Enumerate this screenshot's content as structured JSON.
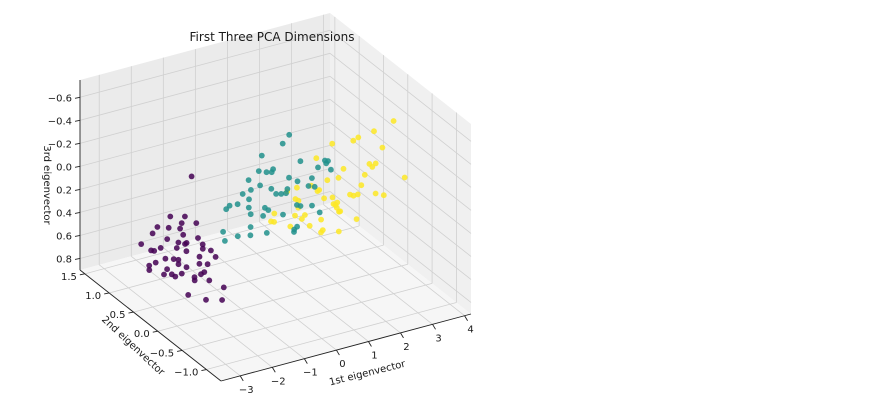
{
  "chart_data": {
    "type": "scatter",
    "title": "First Three PCA Dimensions",
    "xlabel": "1st eigenvector",
    "ylabel": "2nd eigenvector",
    "zlabel": "3rd eigenvector",
    "x_ticks": [
      "−3",
      "−2",
      "−1",
      "0",
      "1",
      "2",
      "3",
      "4"
    ],
    "y_ticks": [
      "−1.0",
      "−0.5",
      "0.0",
      "0.5",
      "1.0",
      "1.5"
    ],
    "z_ticks": [
      "−0.6",
      "−0.4",
      "−0.2",
      "0.0",
      "0.2",
      "0.4",
      "0.6",
      "0.8"
    ],
    "xlim": [
      -3.6,
      4.2
    ],
    "ylim": [
      -1.3,
      1.6
    ],
    "zlim": [
      -0.75,
      0.9
    ],
    "z_inverted": true,
    "grid": true,
    "series": [
      {
        "color": "#440154",
        "points": [
          [
            -2.8,
            -0.3,
            0.05
          ],
          [
            -2.6,
            0.1,
            0.25
          ],
          [
            -2.7,
            0.4,
            0.3
          ],
          [
            -2.5,
            -0.2,
            0.2
          ],
          [
            -2.4,
            0.3,
            0.15
          ],
          [
            -2.6,
            0.6,
            0.45
          ],
          [
            -2.3,
            0.0,
            0.35
          ],
          [
            -2.2,
            0.5,
            0.4
          ],
          [
            -2.7,
            -0.5,
            0.1
          ],
          [
            -2.5,
            0.8,
            0.55
          ],
          [
            -2.4,
            0.2,
            0.5
          ],
          [
            -2.3,
            -0.1,
            0.45
          ],
          [
            -2.2,
            0.4,
            0.3
          ],
          [
            -2.6,
            0.3,
            0.6
          ],
          [
            -2.5,
            -0.3,
            0.3
          ],
          [
            -2.1,
            0.1,
            0.55
          ],
          [
            -2.8,
            0.2,
            0.4
          ],
          [
            -2.4,
            0.6,
            0.65
          ],
          [
            -2.3,
            0.9,
            0.7
          ],
          [
            -2.6,
            -0.1,
            0.5
          ],
          [
            -2.2,
            -0.4,
            0.6
          ],
          [
            -2.5,
            0.5,
            0.25
          ],
          [
            -2.7,
            0.0,
            0.2
          ],
          [
            -2.1,
            0.7,
            0.75
          ],
          [
            -2.3,
            0.3,
            0.1
          ],
          [
            -2.9,
            0.6,
            0.45
          ],
          [
            -2.4,
            -0.2,
            0.65
          ],
          [
            -2.6,
            1.0,
            0.55
          ],
          [
            -2.0,
            0.2,
            0.5
          ],
          [
            -2.5,
            0.1,
            0.7
          ],
          [
            -3.0,
            -0.3,
            -0.5
          ],
          [
            -2.2,
            0.5,
            0.55
          ],
          [
            -2.4,
            0.4,
            0.4
          ],
          [
            -2.7,
            0.7,
            0.35
          ],
          [
            -2.3,
            -0.5,
            0.45
          ],
          [
            -2.6,
            0.2,
            0.15
          ],
          [
            -2.1,
            -0.2,
            0.3
          ],
          [
            -2.5,
            0.9,
            0.75
          ],
          [
            -2.8,
            0.4,
            0.6
          ],
          [
            -2.2,
            0.0,
            0.25
          ],
          [
            -2.4,
            0.8,
            0.35
          ],
          [
            -2.3,
            0.6,
            0.2
          ],
          [
            -2.0,
            0.3,
            0.65
          ],
          [
            -2.6,
            -0.4,
            0.4
          ],
          [
            -2.5,
            0.3,
            0.5
          ],
          [
            -2.1,
            0.4,
            0.45
          ],
          [
            -2.7,
            0.1,
            0.5
          ],
          [
            -2.2,
            1.1,
            0.8
          ],
          [
            -2.4,
            0.0,
            0.05
          ],
          [
            -2.3,
            0.7,
            0.6
          ]
        ]
      },
      {
        "color": "#21918c",
        "points": [
          [
            0.5,
            0.0,
            -0.5
          ],
          [
            -0.5,
            -0.3,
            -0.35
          ],
          [
            0.3,
            0.2,
            -0.15
          ],
          [
            -0.8,
            0.1,
            -0.05
          ],
          [
            0.8,
            -0.2,
            -0.1
          ],
          [
            0.2,
            0.4,
            0.05
          ],
          [
            -0.3,
            0.3,
            0.1
          ],
          [
            1.0,
            0.1,
            -0.2
          ],
          [
            0.6,
            -0.4,
            -0.25
          ],
          [
            -0.6,
            0.5,
            0.2
          ],
          [
            0.1,
            -0.1,
            -0.05
          ],
          [
            1.2,
            -0.3,
            -0.3
          ],
          [
            -0.2,
            0.6,
            0.25
          ],
          [
            0.4,
            0.0,
            0.0
          ],
          [
            0.9,
            0.3,
            0.1
          ],
          [
            -1.0,
            -0.2,
            -0.2
          ],
          [
            0.7,
            0.5,
            0.15
          ],
          [
            0.0,
            -0.5,
            -0.3
          ],
          [
            1.4,
            0.0,
            -0.15
          ],
          [
            -0.4,
            0.2,
            0.3
          ],
          [
            0.3,
            0.7,
            0.35
          ],
          [
            0.8,
            -0.6,
            -0.45
          ],
          [
            -0.7,
            0.0,
            0.1
          ],
          [
            1.1,
            0.4,
            0.05
          ],
          [
            0.2,
            -0.3,
            0.2
          ],
          [
            -0.1,
            0.9,
            0.4
          ],
          [
            0.6,
            0.2,
            -0.35
          ],
          [
            1.3,
            -0.1,
            0.2
          ],
          [
            -0.9,
            0.4,
            0.45
          ],
          [
            0.4,
            -0.8,
            -0.55
          ],
          [
            0.0,
            0.1,
            0.15
          ],
          [
            0.9,
            0.8,
            0.5
          ],
          [
            -0.3,
            -0.4,
            0.0
          ],
          [
            1.6,
            0.2,
            0.1
          ],
          [
            0.5,
            0.5,
            0.3
          ],
          [
            -0.5,
            0.7,
            0.5
          ],
          [
            0.7,
            -0.1,
            0.1
          ],
          [
            1.0,
            0.6,
            0.25
          ],
          [
            0.1,
            0.3,
            -0.25
          ],
          [
            -0.2,
            0.0,
            0.3
          ],
          [
            1.5,
            0.5,
            0.35
          ],
          [
            0.3,
            -0.6,
            -0.1
          ],
          [
            0.8,
            0.1,
            0.4
          ],
          [
            -0.6,
            -0.1,
            -0.3
          ],
          [
            1.2,
            0.3,
            0.45
          ],
          [
            0.6,
            0.9,
            0.2
          ],
          [
            -0.8,
            0.2,
            0.35
          ],
          [
            0.2,
            0.6,
            0.55
          ],
          [
            1.8,
            0.0,
            -0.1
          ],
          [
            0.4,
            0.4,
            -0.05
          ]
        ]
      },
      {
        "color": "#fde725",
        "points": [
          [
            3.0,
            -0.5,
            -0.6
          ],
          [
            2.5,
            0.0,
            -0.3
          ],
          [
            1.8,
            0.3,
            -0.1
          ],
          [
            3.5,
            0.2,
            0.3
          ],
          [
            2.2,
            -0.3,
            -0.45
          ],
          [
            1.5,
            0.5,
            0.2
          ],
          [
            2.8,
            0.4,
            0.1
          ],
          [
            3.2,
            0.0,
            -0.05
          ],
          [
            2.0,
            0.8,
            0.45
          ],
          [
            1.2,
            0.2,
            0.35
          ],
          [
            2.6,
            0.6,
            0.25
          ],
          [
            3.8,
            -0.2,
            0.05
          ],
          [
            1.7,
            -0.1,
            0.1
          ],
          [
            2.3,
            1.0,
            0.6
          ],
          [
            2.9,
            0.1,
            0.15
          ],
          [
            1.9,
            0.6,
            0.5
          ],
          [
            3.4,
            0.5,
            0.4
          ],
          [
            2.1,
            -0.5,
            -0.2
          ],
          [
            1.4,
            0.9,
            0.55
          ],
          [
            2.7,
            -0.2,
            -0.15
          ],
          [
            2.4,
            0.3,
            0.35
          ],
          [
            3.1,
            0.7,
            0.3
          ],
          [
            1.6,
            1.1,
            0.7
          ],
          [
            2.0,
            0.0,
            0.2
          ],
          [
            3.6,
            0.3,
            -0.2
          ],
          [
            2.2,
            0.7,
            0.65
          ],
          [
            1.3,
            0.4,
            0.25
          ],
          [
            2.8,
            0.9,
            0.45
          ],
          [
            1.9,
            -0.4,
            0.0
          ],
          [
            2.5,
            1.2,
            0.75
          ],
          [
            3.3,
            -0.1,
            0.2
          ],
          [
            1.8,
            0.2,
            0.4
          ],
          [
            2.6,
            0.5,
            -0.1
          ],
          [
            2.3,
            -0.2,
            0.3
          ],
          [
            3.0,
            0.6,
            0.55
          ],
          [
            1.5,
            0.7,
            0.3
          ],
          [
            2.9,
            1.0,
            0.5
          ],
          [
            2.1,
            0.4,
            0.6
          ],
          [
            1.7,
            0.1,
            0.45
          ],
          [
            3.7,
            0.4,
            0.15
          ],
          [
            2.4,
            0.8,
            0.35
          ],
          [
            2.0,
            1.3,
            0.8
          ],
          [
            2.7,
            0.2,
            0.25
          ],
          [
            1.6,
            -0.3,
            0.15
          ],
          [
            3.2,
            0.8,
            0.6
          ],
          [
            2.2,
            0.1,
            0.5
          ],
          [
            1.9,
            0.9,
            0.7
          ],
          [
            2.8,
            -0.4,
            -0.35
          ],
          [
            2.5,
            0.6,
            0.4
          ],
          [
            3.4,
            1.0,
            0.65
          ]
        ]
      }
    ]
  }
}
